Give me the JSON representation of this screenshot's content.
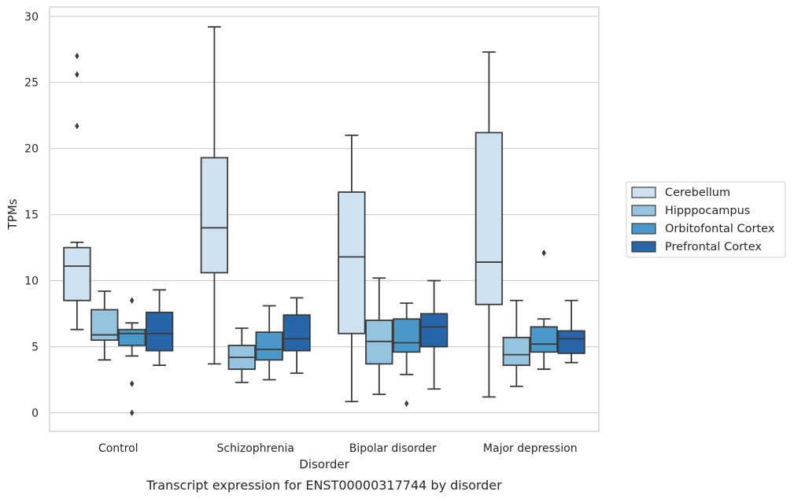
{
  "chart_data": {
    "type": "box",
    "caption": "Transcript expression for ENST00000317744 by disorder",
    "xlabel": "Disorder",
    "ylabel": "TPMs",
    "ylim": [
      -1.4,
      30.7
    ],
    "yticks": [
      0,
      5,
      10,
      15,
      20,
      25,
      30
    ],
    "grid": "horizontal",
    "legend_position": "right-outside",
    "categories": [
      "Control",
      "Schizophrenia",
      "Bipolar disorder",
      "Major depression"
    ],
    "series": [
      {
        "name": "Cerebellum",
        "color": "#d0e1f2",
        "boxes": [
          {
            "whisker_low": 6.3,
            "q1": 8.5,
            "median": 11.1,
            "q3": 12.5,
            "whisker_high": 12.9,
            "outliers": [
              21.7,
              25.6,
              27.0
            ]
          },
          {
            "whisker_low": 3.7,
            "q1": 10.6,
            "median": 14.0,
            "q3": 19.3,
            "whisker_high": 29.2,
            "outliers": []
          },
          {
            "whisker_low": 0.85,
            "q1": 6.0,
            "median": 11.8,
            "q3": 16.7,
            "whisker_high": 21.0,
            "outliers": []
          },
          {
            "whisker_low": 1.2,
            "q1": 8.2,
            "median": 11.4,
            "q3": 21.2,
            "whisker_high": 27.3,
            "outliers": []
          }
        ]
      },
      {
        "name": "Hipppocampus",
        "color": "#94c4df",
        "boxes": [
          {
            "whisker_low": 4.0,
            "q1": 5.5,
            "median": 5.9,
            "q3": 7.8,
            "whisker_high": 9.2,
            "outliers": []
          },
          {
            "whisker_low": 2.3,
            "q1": 3.3,
            "median": 4.2,
            "q3": 5.1,
            "whisker_high": 6.4,
            "outliers": []
          },
          {
            "whisker_low": 1.4,
            "q1": 3.7,
            "median": 5.4,
            "q3": 7.0,
            "whisker_high": 10.2,
            "outliers": []
          },
          {
            "whisker_low": 2.0,
            "q1": 3.6,
            "median": 4.4,
            "q3": 5.7,
            "whisker_high": 8.5,
            "outliers": []
          }
        ]
      },
      {
        "name": "Orbitofontal Cortex",
        "color": "#4a98c9",
        "boxes": [
          {
            "whisker_low": 4.3,
            "q1": 5.1,
            "median": 6.0,
            "q3": 6.3,
            "whisker_high": 6.8,
            "outliers": [
              0.0,
              2.2,
              8.5
            ]
          },
          {
            "whisker_low": 2.5,
            "q1": 4.0,
            "median": 4.8,
            "q3": 6.1,
            "whisker_high": 8.1,
            "outliers": []
          },
          {
            "whisker_low": 2.9,
            "q1": 4.6,
            "median": 5.3,
            "q3": 7.1,
            "whisker_high": 8.3,
            "outliers": [
              0.7
            ]
          },
          {
            "whisker_low": 3.3,
            "q1": 4.6,
            "median": 5.2,
            "q3": 6.5,
            "whisker_high": 7.1,
            "outliers": [
              12.1
            ]
          }
        ]
      },
      {
        "name": "Prefrontal Cortex",
        "color": "#2565a8",
        "boxes": [
          {
            "whisker_low": 3.6,
            "q1": 4.7,
            "median": 6.0,
            "q3": 7.6,
            "whisker_high": 9.3,
            "outliers": []
          },
          {
            "whisker_low": 3.0,
            "q1": 4.7,
            "median": 5.6,
            "q3": 7.4,
            "whisker_high": 8.7,
            "outliers": []
          },
          {
            "whisker_low": 1.8,
            "q1": 5.0,
            "median": 6.5,
            "q3": 7.5,
            "whisker_high": 10.0,
            "outliers": []
          },
          {
            "whisker_low": 3.8,
            "q1": 4.5,
            "median": 5.6,
            "q3": 6.2,
            "whisker_high": 8.5,
            "outliers": []
          }
        ]
      }
    ]
  }
}
